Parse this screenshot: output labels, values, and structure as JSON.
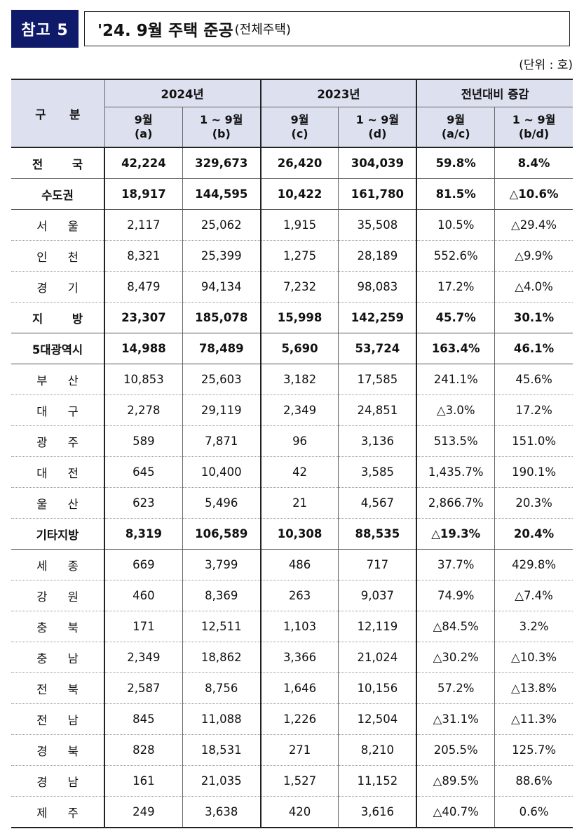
{
  "badge": "참고 5",
  "title": {
    "main": "'24. 9월 주택 준공",
    "sub": "(전체주택)"
  },
  "unit": "(단위 : 호)",
  "table": {
    "row_header": "구 분",
    "groups": [
      "2024년",
      "2023년",
      "전년대비 증감"
    ],
    "subheaders": [
      {
        "line1": "9월",
        "line2": "(a)"
      },
      {
        "line1": "1 ~ 9월",
        "line2": "(b)"
      },
      {
        "line1": "9월",
        "line2": "(c)"
      },
      {
        "line1": "1 ~ 9월",
        "line2": "(d)"
      },
      {
        "line1": "9월",
        "line2": "(a/c)"
      },
      {
        "line1": "1 ~ 9월",
        "line2": "(b/d)"
      }
    ],
    "rows": [
      {
        "name": "전 국",
        "bold": true,
        "spaced": true,
        "values": [
          "42,224",
          "329,673",
          "26,420",
          "304,039",
          "59.8%",
          "8.4%"
        ]
      },
      {
        "name": "수도권",
        "bold": true,
        "values": [
          "18,917",
          "144,595",
          "10,422",
          "161,780",
          "81.5%",
          "△10.6%"
        ]
      },
      {
        "name": "서 울",
        "values": [
          "2,117",
          "25,062",
          "1,915",
          "35,508",
          "10.5%",
          "△29.4%"
        ]
      },
      {
        "name": "인 천",
        "values": [
          "8,321",
          "25,399",
          "1,275",
          "28,189",
          "552.6%",
          "△9.9%"
        ]
      },
      {
        "name": "경 기",
        "values": [
          "8,479",
          "94,134",
          "7,232",
          "98,083",
          "17.2%",
          "△4.0%"
        ]
      },
      {
        "name": "지 방",
        "bold": true,
        "spaced": true,
        "values": [
          "23,307",
          "185,078",
          "15,998",
          "142,259",
          "45.7%",
          "30.1%"
        ]
      },
      {
        "name": "5대광역시",
        "bold": true,
        "values": [
          "14,988",
          "78,489",
          "5,690",
          "53,724",
          "163.4%",
          "46.1%"
        ]
      },
      {
        "name": "부 산",
        "values": [
          "10,853",
          "25,603",
          "3,182",
          "17,585",
          "241.1%",
          "45.6%"
        ]
      },
      {
        "name": "대 구",
        "values": [
          "2,278",
          "29,119",
          "2,349",
          "24,851",
          "△3.0%",
          "17.2%"
        ]
      },
      {
        "name": "광 주",
        "values": [
          "589",
          "7,871",
          "96",
          "3,136",
          "513.5%",
          "151.0%"
        ]
      },
      {
        "name": "대 전",
        "values": [
          "645",
          "10,400",
          "42",
          "3,585",
          "1,435.7%",
          "190.1%"
        ]
      },
      {
        "name": "울 산",
        "values": [
          "623",
          "5,496",
          "21",
          "4,567",
          "2,866.7%",
          "20.3%"
        ]
      },
      {
        "name": "기타지방",
        "bold": true,
        "values": [
          "8,319",
          "106,589",
          "10,308",
          "88,535",
          "△19.3%",
          "20.4%"
        ]
      },
      {
        "name": "세 종",
        "values": [
          "669",
          "3,799",
          "486",
          "717",
          "37.7%",
          "429.8%"
        ]
      },
      {
        "name": "강 원",
        "values": [
          "460",
          "8,369",
          "263",
          "9,037",
          "74.9%",
          "△7.4%"
        ]
      },
      {
        "name": "충 북",
        "values": [
          "171",
          "12,511",
          "1,103",
          "12,119",
          "△84.5%",
          "3.2%"
        ]
      },
      {
        "name": "충 남",
        "values": [
          "2,349",
          "18,862",
          "3,366",
          "21,024",
          "△30.2%",
          "△10.3%"
        ]
      },
      {
        "name": "전 북",
        "values": [
          "2,587",
          "8,756",
          "1,646",
          "10,156",
          "57.2%",
          "△13.8%"
        ]
      },
      {
        "name": "전 남",
        "values": [
          "845",
          "11,088",
          "1,226",
          "12,504",
          "△31.1%",
          "△11.3%"
        ]
      },
      {
        "name": "경 북",
        "values": [
          "828",
          "18,531",
          "271",
          "8,210",
          "205.5%",
          "125.7%"
        ]
      },
      {
        "name": "경 남",
        "values": [
          "161",
          "21,035",
          "1,527",
          "11,152",
          "△89.5%",
          "88.6%"
        ]
      },
      {
        "name": "제 주",
        "values": [
          "249",
          "3,638",
          "420",
          "3,616",
          "△40.7%",
          "0.6%"
        ]
      }
    ]
  }
}
